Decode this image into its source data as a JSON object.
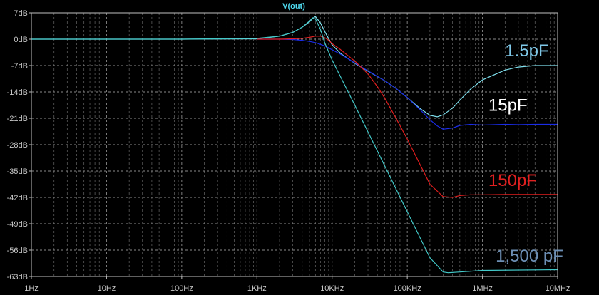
{
  "chart_data": {
    "type": "line",
    "title": "V(out)",
    "colors": {
      "background": "#000000",
      "grid": "#8a8a8a",
      "axis": "#bfbfbf",
      "tick_text": "#c8c8c8",
      "title": "#4fd9ee"
    },
    "x_axis": {
      "scale": "log",
      "range": [
        1,
        10000000
      ],
      "ticks": [
        {
          "value": 1,
          "label": "1Hz"
        },
        {
          "value": 10,
          "label": "10Hz"
        },
        {
          "value": 100,
          "label": "100Hz"
        },
        {
          "value": 1000,
          "label": "1KHz"
        },
        {
          "value": 10000,
          "label": "10KHz"
        },
        {
          "value": 100000,
          "label": "100KHz"
        },
        {
          "value": 1000000,
          "label": "1MHz"
        },
        {
          "value": 10000000,
          "label": "10MHz"
        }
      ]
    },
    "y_axis": {
      "range": [
        -63,
        7
      ],
      "ticks": [
        {
          "value": 7,
          "label": "7dB"
        },
        {
          "value": 0,
          "label": "0dB"
        },
        {
          "value": -7,
          "label": "-7dB"
        },
        {
          "value": -14,
          "label": "-14dB"
        },
        {
          "value": -21,
          "label": "-21dB"
        },
        {
          "value": -28,
          "label": "-28dB"
        },
        {
          "value": -35,
          "label": "-35dB"
        },
        {
          "value": -42,
          "label": "-42dB"
        },
        {
          "value": -49,
          "label": "-49dB"
        },
        {
          "value": -56,
          "label": "-56dB"
        },
        {
          "value": -63,
          "label": "-63dB"
        }
      ]
    },
    "grid": true,
    "series": [
      {
        "name": "1.5pF",
        "color": "#7fe0ee",
        "x": [
          1,
          10,
          100,
          1000,
          2000,
          3000,
          4000,
          5000,
          5500,
          6000,
          7000,
          8000,
          10000,
          13000,
          20000,
          30000,
          50000,
          70000,
          100000,
          150000,
          200000,
          250000,
          300000,
          400000,
          500000,
          700000,
          1000000,
          2000000,
          3000000,
          5000000,
          10000000
        ],
        "y": [
          0,
          0,
          0,
          0.1,
          0.8,
          1.8,
          3.2,
          4.6,
          5.5,
          6.0,
          4.3,
          2.0,
          -1.5,
          -3.8,
          -6.4,
          -8.5,
          -11.0,
          -13.0,
          -15.5,
          -18.5,
          -20.2,
          -20.6,
          -20.1,
          -18.3,
          -16.2,
          -13.2,
          -10.8,
          -8.2,
          -7.4,
          -7.0,
          -7.0
        ]
      },
      {
        "name": "15pF",
        "color": "#1a2ce8",
        "x": [
          1000,
          2000,
          3000,
          4000,
          5000,
          6000,
          8000,
          10000,
          13000,
          20000,
          30000,
          50000,
          70000,
          100000,
          150000,
          200000,
          250000,
          300000,
          400000,
          500000,
          700000,
          1000000,
          2000000,
          3000000,
          5000000,
          10000000
        ],
        "y": [
          0,
          0,
          -0.1,
          -0.3,
          -0.6,
          -0.9,
          -1.8,
          -2.8,
          -4.0,
          -6.3,
          -8.4,
          -11.0,
          -13.0,
          -15.5,
          -18.8,
          -21.4,
          -23.0,
          -23.9,
          -23.6,
          -22.9,
          -22.6,
          -22.8,
          -22.6,
          -22.7,
          -22.6,
          -22.6
        ]
      },
      {
        "name": "150pF",
        "color": "#e01e1e",
        "x": [
          1000,
          2000,
          3000,
          4000,
          5000,
          6000,
          7000,
          8000,
          9000,
          10000,
          13000,
          20000,
          30000,
          40000,
          50000,
          70000,
          100000,
          150000,
          200000,
          300000,
          400000,
          500000,
          700000,
          1000000,
          2000000,
          10000000
        ],
        "y": [
          0,
          0,
          0.1,
          0.2,
          0.5,
          0.8,
          0.8,
          0.4,
          -0.3,
          -1.2,
          -2.8,
          -5.8,
          -9.2,
          -12.6,
          -15.6,
          -20.8,
          -26.5,
          -33.5,
          -38.5,
          -41.8,
          -42.0,
          -41.5,
          -41.3,
          -41.3,
          -41.2,
          -41.2
        ]
      },
      {
        "name": "1,500 pF",
        "color": "#43c9c9",
        "x": [
          1,
          10,
          100,
          1000,
          2000,
          3000,
          4000,
          5000,
          5500,
          6000,
          7000,
          8000,
          10000,
          20000,
          50000,
          100000,
          200000,
          300000,
          350000,
          500000,
          1000000,
          10000000
        ],
        "y": [
          0,
          0,
          0,
          0.2,
          0.8,
          1.8,
          3.2,
          4.8,
          5.7,
          5.4,
          2.6,
          -1.0,
          -5.5,
          -17.5,
          -33.6,
          -45.8,
          -58.0,
          -61.8,
          -62.0,
          -61.8,
          -61.4,
          -61.2
        ]
      }
    ],
    "annotations": [
      {
        "text": "1.5pF",
        "color": "#7fc8e8",
        "x": 2000000,
        "y": -4.5
      },
      {
        "text": "15pF",
        "color": "#ffffff",
        "x": 1200000,
        "y": -19.0
      },
      {
        "text": "150pF",
        "color": "#e02020",
        "x": 1200000,
        "y": -39.0
      },
      {
        "text": "1,500 pF",
        "color": "#6d8fb5",
        "x": 1500000,
        "y": -59.0
      }
    ]
  }
}
